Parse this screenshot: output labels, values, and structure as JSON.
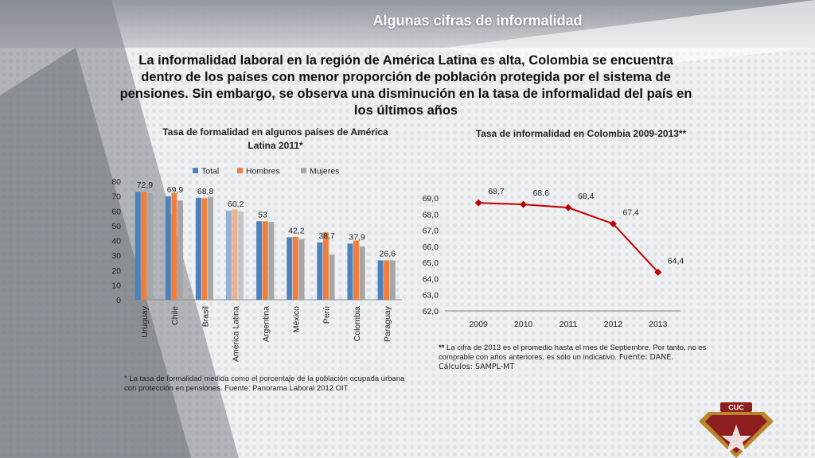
{
  "slide": {
    "title": "Algunas cifras de informalidad",
    "intro": "La informalidad laboral en la región de América Latina es alta, Colombia se encuentra dentro de los países con menor proporción de población protegida por el sistema de pensiones. Sin embargo, se observa una disminución en la tasa de informalidad  del país en los últimos años"
  },
  "notes": {
    "left": "* La tasa de formalidad medida como el porcentaje de la población ocupada urbana con protección en pensiones. Fuente: Panorama Laboral  2012 OIT",
    "right_mark": "**",
    "right_text": " La cifra de 2013 es el  promedio hasta el mes de Septiembre. Por tanto, no es comprable con años anteriores, es sólo un indicativo.",
    "right_source": " Fuente: DANE. Cálculos: SAMPL-MT"
  },
  "logo_text": "CUC",
  "colors": {
    "total": "#4f81bd",
    "hombres": "#f07f3c",
    "mujeres": "#a6a6a6",
    "line": "#c00000",
    "background": "#eef0f2"
  },
  "chart_data": [
    {
      "type": "bar",
      "title": "Tasa de formalidad en algunos países de América Latina 2011*",
      "categories": [
        "Uruguay",
        "Chile",
        "Brasil",
        "América Latina",
        "Argentina",
        "México",
        "Perú",
        "Colombia",
        "Paraguay"
      ],
      "series": [
        {
          "name": "Total",
          "values": [
            72.9,
            69.9,
            68.8,
            60.2,
            53,
            42.2,
            38.7,
            37.9,
            26.6
          ]
        },
        {
          "name": "Hombres",
          "values": [
            73,
            72,
            68.5,
            61,
            53,
            42.5,
            45.5,
            40,
            26.6
          ]
        },
        {
          "name": "Mujeres",
          "values": [
            72,
            67,
            69.5,
            59.5,
            52.5,
            41,
            30.5,
            36,
            26.6
          ]
        }
      ],
      "data_labels": [
        "72,9",
        "69,9",
        "68,8",
        "60,2",
        "53",
        "42,2",
        "38,7",
        "37,9",
        "26,6"
      ],
      "yticks": [
        "0",
        "10",
        "20",
        "30",
        "40",
        "50",
        "60",
        "70",
        "80"
      ],
      "ylim": [
        0,
        80
      ],
      "legend": "top",
      "grid": false,
      "highlight_category": "América Latina"
    },
    {
      "type": "line",
      "title": "Tasa de informalidad en Colombia 2009-2013**",
      "x": [
        "2009",
        "2010",
        "2011",
        "2012",
        "2013"
      ],
      "series": [
        {
          "values": [
            68.7,
            68.6,
            68.4,
            67.4,
            64.4
          ]
        }
      ],
      "data_labels": [
        "68,7",
        "68,6",
        "68,4",
        "67,4",
        "64,4"
      ],
      "yticks": [
        "62,0",
        "63,0",
        "64,0",
        "65,0",
        "66,0",
        "67,0",
        "68,0",
        "69,0"
      ],
      "ylim": [
        62,
        69
      ],
      "grid": false,
      "legend": "none"
    }
  ]
}
